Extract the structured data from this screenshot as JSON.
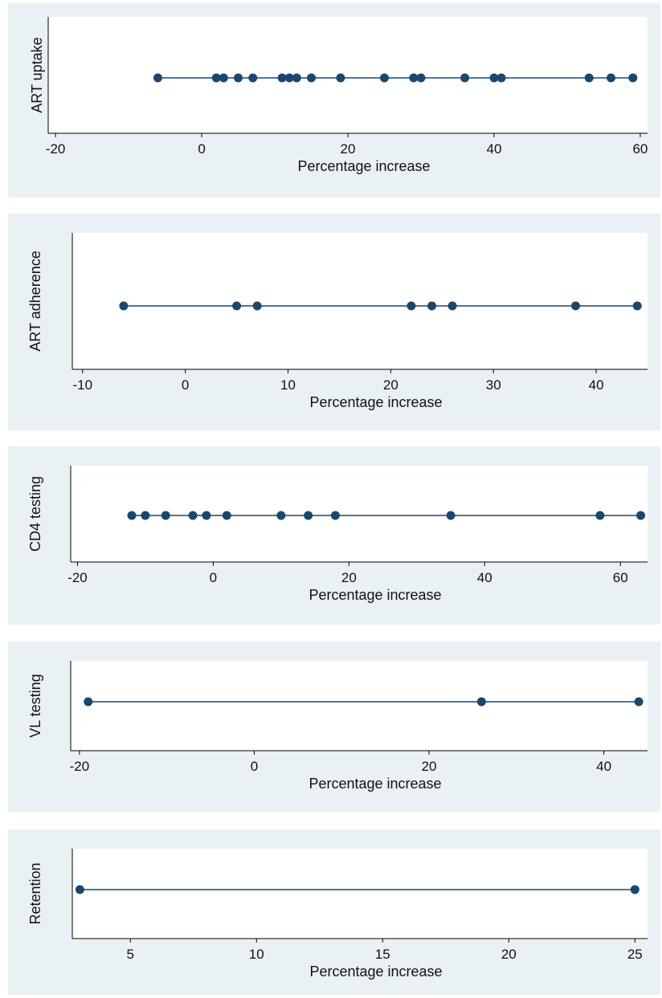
{
  "chart_data": [
    {
      "type": "scatter",
      "ylabel": "ART uptake",
      "xlabel": "Percentage increase",
      "xticks": [
        -20,
        0,
        20,
        40,
        60
      ],
      "xlim": [
        -21,
        61
      ],
      "values": [
        -6,
        2,
        3,
        5,
        7,
        11,
        12,
        13,
        15,
        19,
        25,
        29,
        30,
        36,
        40,
        41,
        53,
        56,
        59
      ],
      "line_range": [
        -6,
        59
      ],
      "grid": false,
      "marker_color": "#1a476f"
    },
    {
      "type": "scatter",
      "ylabel": "ART adherence",
      "xlabel": "Percentage increase",
      "xticks": [
        -10,
        0,
        10,
        20,
        30,
        40
      ],
      "xlim": [
        -11,
        45
      ],
      "values": [
        -6,
        5,
        7,
        22,
        24,
        26,
        38,
        44
      ],
      "line_range": [
        -6,
        44
      ],
      "grid": false,
      "marker_color": "#1a476f"
    },
    {
      "type": "scatter",
      "ylabel": "CD4 testing",
      "xlabel": "Percentage increase",
      "xticks": [
        -20,
        0,
        20,
        40,
        60
      ],
      "xlim": [
        -21,
        64
      ],
      "values": [
        -12,
        -10,
        -7,
        -3,
        -1,
        2,
        10,
        14,
        18,
        35,
        57,
        63
      ],
      "line_range": [
        -12,
        63
      ],
      "grid": false,
      "marker_color": "#1a476f"
    },
    {
      "type": "scatter",
      "ylabel": "VL testing",
      "xlabel": "Percentage increase",
      "xticks": [
        -20,
        0,
        20,
        40
      ],
      "xlim": [
        -21,
        45
      ],
      "values": [
        -19,
        26,
        44
      ],
      "line_range": [
        -19,
        44
      ],
      "grid": false,
      "marker_color": "#1a476f"
    },
    {
      "type": "scatter",
      "ylabel": "Retention",
      "xlabel": "Percentage increase",
      "xticks": [
        5,
        10,
        15,
        20,
        25
      ],
      "xlim": [
        2.7,
        25.5
      ],
      "values": [
        3,
        25
      ],
      "line_range": [
        3,
        25
      ],
      "grid": false,
      "marker_color": "#1a476f"
    }
  ]
}
